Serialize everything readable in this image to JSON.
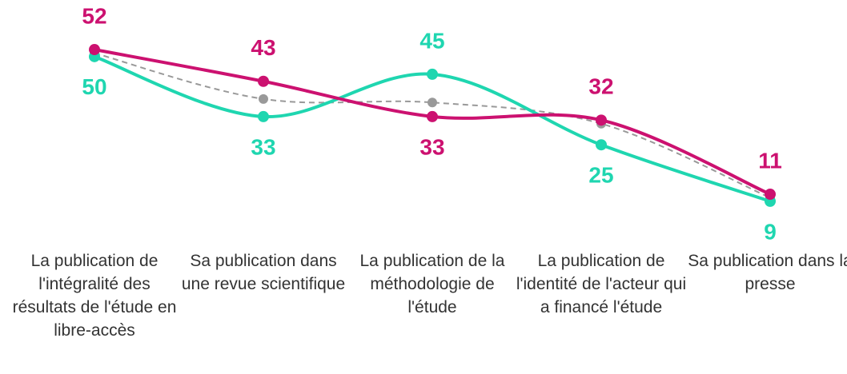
{
  "chart_data": {
    "type": "line",
    "categories": [
      "La publication de l'intégralité des résultats de l'étude en libre-accès",
      "Sa publication dans une revue scientifique",
      "La publication de la méthodologie de l'étude",
      "La publication de l'identité de l'acteur qui a financé l'étude",
      "Sa publication dans la presse"
    ],
    "ylim": [
      0,
      60
    ],
    "series": [
      {
        "color": "#999999",
        "dashed": true,
        "values": [
          51,
          38,
          37,
          31,
          10
        ]
      },
      {
        "color": "#1fd6b0",
        "values": [
          50,
          33,
          45,
          25,
          9
        ]
      },
      {
        "color": "#cc1170",
        "values": [
          52,
          43,
          33,
          32,
          11
        ]
      }
    ]
  }
}
